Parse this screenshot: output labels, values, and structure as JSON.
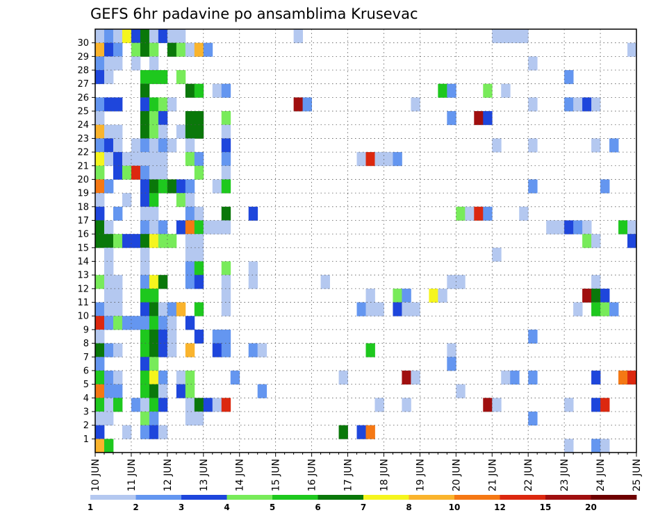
{
  "chart_data": {
    "type": "heatmap",
    "title": "GEFS 6hr padavine po ansamblima Krusevac",
    "y_ticks": [
      "1",
      "2",
      "3",
      "4",
      "5",
      "6",
      "7",
      "8",
      "9",
      "10",
      "11",
      "12",
      "13",
      "14",
      "15",
      "16",
      "17",
      "18",
      "19",
      "20",
      "21",
      "22",
      "23",
      "24",
      "25",
      "26",
      "27",
      "28",
      "29",
      "30"
    ],
    "x_ticks": [
      "10 JUN",
      "11 JUN",
      "12 JUN",
      "13 JUN",
      "14 JUN",
      "15 JUN",
      "16 JUN",
      "17 JUN",
      "18 JUN",
      "19 JUN",
      "20 JUN",
      "21 JUN",
      "22 JUN",
      "23 JUN",
      "24 JUN",
      "25 JUN"
    ],
    "x_range": [
      "10 JUN 00Z",
      "25 JUN 00Z"
    ],
    "y_range": [
      0,
      30
    ],
    "grid": "dotted",
    "colorbar": {
      "labels": [
        "1",
        "2",
        "3",
        "4",
        "5",
        "6",
        "7",
        "8",
        "10",
        "12",
        "15",
        "20"
      ],
      "colors": [
        "#b4c8f0",
        "#6496f0",
        "#1e46dc",
        "#78eb5a",
        "#1ec81e",
        "#0a780a",
        "#f5f51e",
        "#fab42d",
        "#f57814",
        "#dc280f",
        "#a00f0f",
        "#6e0000"
      ]
    },
    "cells_note": "each entry: [member, step index (6h steps from 10 JUN 00Z), color class 1-12]",
    "cells": [
      [
        30,
        0,
        1
      ],
      [
        30,
        1,
        2
      ],
      [
        30,
        2,
        1
      ],
      [
        30,
        3,
        7
      ],
      [
        30,
        4,
        3
      ],
      [
        30,
        5,
        6
      ],
      [
        30,
        6,
        1
      ],
      [
        30,
        7,
        3
      ],
      [
        30,
        8,
        1
      ],
      [
        30,
        9,
        1
      ],
      [
        30,
        22,
        1
      ],
      [
        30,
        44,
        1
      ],
      [
        30,
        45,
        1
      ],
      [
        30,
        46,
        1
      ],
      [
        30,
        47,
        1
      ],
      [
        29,
        0,
        8
      ],
      [
        29,
        1,
        3
      ],
      [
        29,
        2,
        2
      ],
      [
        29,
        4,
        4
      ],
      [
        29,
        5,
        6
      ],
      [
        29,
        6,
        4
      ],
      [
        29,
        8,
        6
      ],
      [
        29,
        9,
        4
      ],
      [
        29,
        10,
        1
      ],
      [
        29,
        11,
        8
      ],
      [
        29,
        12,
        2
      ],
      [
        29,
        59,
        1
      ],
      [
        28,
        0,
        2
      ],
      [
        28,
        1,
        1
      ],
      [
        28,
        2,
        1
      ],
      [
        28,
        4,
        1
      ],
      [
        28,
        6,
        1
      ],
      [
        28,
        48,
        1
      ],
      [
        27,
        0,
        3
      ],
      [
        27,
        1,
        1
      ],
      [
        27,
        5,
        5
      ],
      [
        27,
        6,
        5
      ],
      [
        27,
        7,
        5
      ],
      [
        27,
        9,
        4
      ],
      [
        27,
        52,
        2
      ],
      [
        26,
        5,
        6
      ],
      [
        26,
        10,
        6
      ],
      [
        26,
        11,
        5
      ],
      [
        26,
        13,
        1
      ],
      [
        26,
        14,
        2
      ],
      [
        26,
        38,
        5
      ],
      [
        26,
        39,
        2
      ],
      [
        26,
        43,
        4
      ],
      [
        26,
        45,
        1
      ],
      [
        25,
        0,
        2
      ],
      [
        25,
        1,
        3
      ],
      [
        25,
        2,
        3
      ],
      [
        25,
        5,
        3
      ],
      [
        25,
        6,
        5
      ],
      [
        25,
        7,
        4
      ],
      [
        25,
        8,
        1
      ],
      [
        25,
        22,
        11
      ],
      [
        25,
        23,
        2
      ],
      [
        25,
        35,
        1
      ],
      [
        25,
        48,
        1
      ],
      [
        25,
        52,
        2
      ],
      [
        25,
        53,
        1
      ],
      [
        25,
        54,
        3
      ],
      [
        25,
        55,
        1
      ],
      [
        24,
        0,
        1
      ],
      [
        24,
        5,
        6
      ],
      [
        24,
        6,
        4
      ],
      [
        24,
        7,
        3
      ],
      [
        24,
        10,
        6
      ],
      [
        24,
        11,
        6
      ],
      [
        24,
        14,
        4
      ],
      [
        24,
        39,
        2
      ],
      [
        24,
        42,
        11
      ],
      [
        24,
        43,
        3
      ],
      [
        23,
        0,
        8
      ],
      [
        23,
        1,
        1
      ],
      [
        23,
        2,
        1
      ],
      [
        23,
        5,
        6
      ],
      [
        23,
        6,
        4
      ],
      [
        23,
        7,
        1
      ],
      [
        23,
        9,
        1
      ],
      [
        23,
        10,
        6
      ],
      [
        23,
        11,
        6
      ],
      [
        23,
        14,
        1
      ],
      [
        22,
        0,
        2
      ],
      [
        22,
        1,
        3
      ],
      [
        22,
        2,
        1
      ],
      [
        22,
        4,
        1
      ],
      [
        22,
        5,
        2
      ],
      [
        22,
        6,
        1
      ],
      [
        22,
        7,
        2
      ],
      [
        22,
        8,
        1
      ],
      [
        22,
        10,
        1
      ],
      [
        22,
        14,
        3
      ],
      [
        22,
        44,
        1
      ],
      [
        22,
        48,
        1
      ],
      [
        22,
        55,
        1
      ],
      [
        22,
        57,
        2
      ],
      [
        21,
        0,
        7
      ],
      [
        21,
        1,
        1
      ],
      [
        21,
        2,
        3
      ],
      [
        21,
        3,
        1
      ],
      [
        21,
        4,
        1
      ],
      [
        21,
        5,
        1
      ],
      [
        21,
        6,
        1
      ],
      [
        21,
        7,
        1
      ],
      [
        21,
        10,
        4
      ],
      [
        21,
        11,
        2
      ],
      [
        21,
        14,
        2
      ],
      [
        21,
        29,
        1
      ],
      [
        21,
        30,
        10
      ],
      [
        21,
        31,
        1
      ],
      [
        21,
        32,
        1
      ],
      [
        21,
        33,
        2
      ],
      [
        20,
        0,
        4
      ],
      [
        20,
        2,
        3
      ],
      [
        20,
        3,
        4
      ],
      [
        20,
        4,
        10
      ],
      [
        20,
        5,
        2
      ],
      [
        20,
        6,
        1
      ],
      [
        20,
        7,
        1
      ],
      [
        20,
        11,
        4
      ],
      [
        20,
        14,
        1
      ],
      [
        19,
        0,
        9
      ],
      [
        19,
        1,
        2
      ],
      [
        19,
        5,
        3
      ],
      [
        19,
        6,
        6
      ],
      [
        19,
        7,
        5
      ],
      [
        19,
        8,
        6
      ],
      [
        19,
        9,
        3
      ],
      [
        19,
        10,
        2
      ],
      [
        19,
        13,
        1
      ],
      [
        19,
        14,
        5
      ],
      [
        19,
        48,
        2
      ],
      [
        19,
        56,
        2
      ],
      [
        18,
        0,
        1
      ],
      [
        18,
        3,
        1
      ],
      [
        18,
        5,
        3
      ],
      [
        18,
        6,
        5
      ],
      [
        18,
        9,
        4
      ],
      [
        18,
        10,
        1
      ],
      [
        17,
        0,
        3
      ],
      [
        17,
        2,
        2
      ],
      [
        17,
        5,
        1
      ],
      [
        17,
        6,
        1
      ],
      [
        17,
        10,
        2
      ],
      [
        17,
        11,
        1
      ],
      [
        17,
        14,
        6
      ],
      [
        17,
        17,
        3
      ],
      [
        17,
        40,
        4
      ],
      [
        17,
        41,
        1
      ],
      [
        17,
        42,
        10
      ],
      [
        17,
        43,
        2
      ],
      [
        17,
        47,
        1
      ],
      [
        16,
        0,
        6
      ],
      [
        16,
        1,
        1
      ],
      [
        16,
        5,
        2
      ],
      [
        16,
        6,
        1
      ],
      [
        16,
        7,
        2
      ],
      [
        16,
        9,
        3
      ],
      [
        16,
        10,
        9
      ],
      [
        16,
        11,
        5
      ],
      [
        16,
        12,
        1
      ],
      [
        16,
        13,
        1
      ],
      [
        16,
        14,
        1
      ],
      [
        16,
        50,
        1
      ],
      [
        16,
        51,
        1
      ],
      [
        16,
        52,
        3
      ],
      [
        16,
        53,
        2
      ],
      [
        16,
        54,
        1
      ],
      [
        16,
        58,
        5
      ],
      [
        16,
        59,
        1
      ],
      [
        15,
        0,
        6
      ],
      [
        15,
        1,
        6
      ],
      [
        15,
        2,
        4
      ],
      [
        15,
        3,
        3
      ],
      [
        15,
        4,
        3
      ],
      [
        15,
        5,
        6
      ],
      [
        15,
        6,
        7
      ],
      [
        15,
        7,
        4
      ],
      [
        15,
        8,
        4
      ],
      [
        15,
        10,
        1
      ],
      [
        15,
        11,
        1
      ],
      [
        15,
        54,
        4
      ],
      [
        15,
        55,
        1
      ],
      [
        15,
        59,
        3
      ],
      [
        14,
        1,
        1
      ],
      [
        14,
        5,
        1
      ],
      [
        14,
        10,
        1
      ],
      [
        14,
        11,
        1
      ],
      [
        14,
        44,
        1
      ],
      [
        13,
        1,
        1
      ],
      [
        13,
        5,
        1
      ],
      [
        13,
        10,
        2
      ],
      [
        13,
        11,
        5
      ],
      [
        13,
        14,
        4
      ],
      [
        13,
        17,
        1
      ],
      [
        12,
        0,
        4
      ],
      [
        12,
        1,
        1
      ],
      [
        12,
        2,
        1
      ],
      [
        12,
        5,
        2
      ],
      [
        12,
        6,
        7
      ],
      [
        12,
        7,
        6
      ],
      [
        12,
        10,
        2
      ],
      [
        12,
        11,
        3
      ],
      [
        12,
        14,
        1
      ],
      [
        12,
        17,
        1
      ],
      [
        12,
        25,
        1
      ],
      [
        12,
        39,
        1
      ],
      [
        12,
        40,
        1
      ],
      [
        12,
        55,
        1
      ],
      [
        11,
        1,
        1
      ],
      [
        11,
        2,
        1
      ],
      [
        11,
        5,
        5
      ],
      [
        11,
        6,
        5
      ],
      [
        11,
        14,
        1
      ],
      [
        11,
        30,
        1
      ],
      [
        11,
        33,
        4
      ],
      [
        11,
        34,
        2
      ],
      [
        11,
        37,
        7
      ],
      [
        11,
        38,
        1
      ],
      [
        11,
        54,
        11
      ],
      [
        11,
        55,
        6
      ],
      [
        11,
        56,
        3
      ],
      [
        10,
        0,
        2
      ],
      [
        10,
        1,
        1
      ],
      [
        10,
        2,
        1
      ],
      [
        10,
        5,
        3
      ],
      [
        10,
        6,
        6
      ],
      [
        10,
        7,
        1
      ],
      [
        10,
        8,
        2
      ],
      [
        10,
        9,
        8
      ],
      [
        10,
        11,
        5
      ],
      [
        10,
        14,
        1
      ],
      [
        10,
        29,
        2
      ],
      [
        10,
        30,
        1
      ],
      [
        10,
        31,
        1
      ],
      [
        10,
        33,
        3
      ],
      [
        10,
        34,
        1
      ],
      [
        10,
        35,
        1
      ],
      [
        10,
        53,
        1
      ],
      [
        10,
        55,
        5
      ],
      [
        10,
        56,
        4
      ],
      [
        10,
        57,
        2
      ],
      [
        9,
        0,
        10
      ],
      [
        9,
        1,
        2
      ],
      [
        9,
        2,
        4
      ],
      [
        9,
        3,
        2
      ],
      [
        9,
        4,
        2
      ],
      [
        9,
        5,
        2
      ],
      [
        9,
        6,
        5
      ],
      [
        9,
        7,
        2
      ],
      [
        9,
        8,
        1
      ],
      [
        9,
        10,
        3
      ],
      [
        8,
        0,
        1
      ],
      [
        8,
        5,
        5
      ],
      [
        8,
        6,
        6
      ],
      [
        8,
        7,
        3
      ],
      [
        8,
        8,
        1
      ],
      [
        8,
        11,
        3
      ],
      [
        8,
        13,
        2
      ],
      [
        8,
        14,
        2
      ],
      [
        8,
        48,
        2
      ],
      [
        7,
        0,
        6
      ],
      [
        7,
        1,
        2
      ],
      [
        7,
        2,
        1
      ],
      [
        7,
        5,
        5
      ],
      [
        7,
        6,
        6
      ],
      [
        7,
        7,
        3
      ],
      [
        7,
        8,
        1
      ],
      [
        7,
        10,
        8
      ],
      [
        7,
        13,
        3
      ],
      [
        7,
        14,
        2
      ],
      [
        7,
        17,
        2
      ],
      [
        7,
        18,
        1
      ],
      [
        7,
        30,
        5
      ],
      [
        7,
        39,
        1
      ],
      [
        6,
        0,
        2
      ],
      [
        6,
        5,
        3
      ],
      [
        6,
        6,
        4
      ],
      [
        6,
        39,
        2
      ],
      [
        5,
        0,
        5
      ],
      [
        5,
        1,
        2
      ],
      [
        5,
        2,
        1
      ],
      [
        5,
        5,
        5
      ],
      [
        5,
        6,
        7
      ],
      [
        5,
        7,
        2
      ],
      [
        5,
        9,
        1
      ],
      [
        5,
        10,
        4
      ],
      [
        5,
        15,
        2
      ],
      [
        5,
        27,
        1
      ],
      [
        5,
        34,
        11
      ],
      [
        5,
        35,
        1
      ],
      [
        5,
        45,
        1
      ],
      [
        5,
        46,
        2
      ],
      [
        5,
        48,
        2
      ],
      [
        5,
        55,
        3
      ],
      [
        5,
        58,
        9
      ],
      [
        5,
        59,
        10
      ],
      [
        4,
        0,
        9
      ],
      [
        4,
        1,
        2
      ],
      [
        4,
        2,
        2
      ],
      [
        4,
        5,
        5
      ],
      [
        4,
        6,
        6
      ],
      [
        4,
        7,
        1
      ],
      [
        4,
        9,
        3
      ],
      [
        4,
        10,
        4
      ],
      [
        4,
        18,
        2
      ],
      [
        4,
        40,
        1
      ],
      [
        3,
        0,
        5
      ],
      [
        3,
        1,
        1
      ],
      [
        3,
        2,
        5
      ],
      [
        3,
        4,
        2
      ],
      [
        3,
        5,
        1
      ],
      [
        3,
        6,
        5
      ],
      [
        3,
        7,
        3
      ],
      [
        3,
        10,
        1
      ],
      [
        3,
        11,
        6
      ],
      [
        3,
        12,
        3
      ],
      [
        3,
        13,
        1
      ],
      [
        3,
        14,
        10
      ],
      [
        3,
        31,
        1
      ],
      [
        3,
        34,
        1
      ],
      [
        3,
        43,
        11
      ],
      [
        3,
        44,
        1
      ],
      [
        3,
        52,
        1
      ],
      [
        3,
        55,
        3
      ],
      [
        3,
        56,
        10
      ],
      [
        2,
        0,
        1
      ],
      [
        2,
        1,
        1
      ],
      [
        2,
        5,
        4
      ],
      [
        2,
        6,
        2
      ],
      [
        2,
        10,
        1
      ],
      [
        2,
        11,
        1
      ],
      [
        2,
        48,
        2
      ],
      [
        1,
        0,
        3
      ],
      [
        1,
        3,
        1
      ],
      [
        1,
        5,
        2
      ],
      [
        1,
        6,
        3
      ],
      [
        1,
        7,
        1
      ],
      [
        1,
        27,
        6
      ],
      [
        1,
        29,
        3
      ],
      [
        1,
        30,
        9
      ],
      [
        0,
        0,
        8
      ],
      [
        0,
        1,
        5
      ],
      [
        0,
        52,
        1
      ],
      [
        0,
        55,
        2
      ],
      [
        0,
        56,
        1
      ]
    ]
  }
}
